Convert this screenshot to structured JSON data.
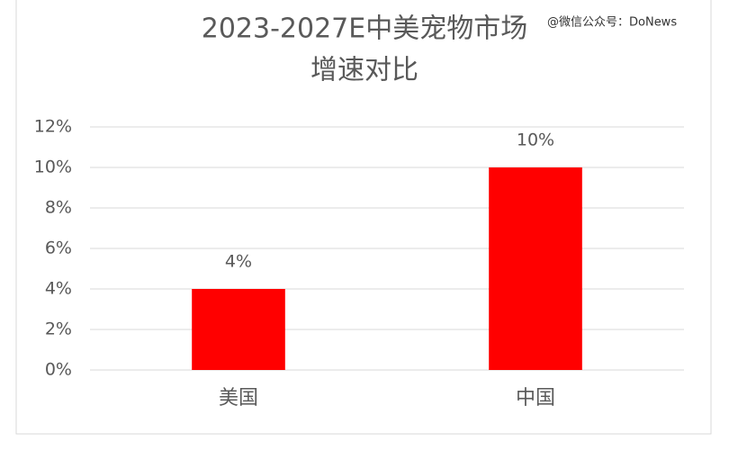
{
  "chart_data": {
    "type": "bar",
    "title": [
      "2023-2027E中美宠物市场",
      "增速对比"
    ],
    "watermark": "@微信公众号：DoNews",
    "categories": [
      "美国",
      "中国"
    ],
    "values": [
      4,
      10
    ],
    "value_labels": [
      "4%",
      "10%"
    ],
    "color": "#ff0000",
    "ylim": [
      0,
      12
    ],
    "yticks": [
      {
        "value": 0,
        "label": "0%"
      },
      {
        "value": 2,
        "label": "2%"
      },
      {
        "value": 4,
        "label": "4%"
      },
      {
        "value": 6,
        "label": "6%"
      },
      {
        "value": 8,
        "label": "8%"
      },
      {
        "value": 10,
        "label": "10%"
      },
      {
        "value": 12,
        "label": "12%"
      }
    ],
    "grid": true
  }
}
